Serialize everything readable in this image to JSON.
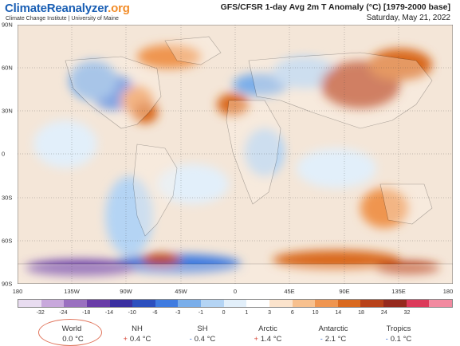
{
  "brand": {
    "name_part1": "ClimateReanalyzer",
    "name_part2": ".org",
    "subtitle": "Climate Change Institute | University of Maine"
  },
  "header": {
    "title": "GFS/CFSR 1-day Avg 2m T Anomaly (°C) [1979-2000 base]",
    "date": "Saturday, May 21, 2022"
  },
  "axes": {
    "lat_labels": [
      "90N",
      "60N",
      "30N",
      "0",
      "30S",
      "60S",
      "90S"
    ],
    "lon_labels": [
      "180",
      "135W",
      "90W",
      "45W",
      "0",
      "45E",
      "90E",
      "135E",
      "180"
    ]
  },
  "colorbar": {
    "labels": [
      "-32",
      "-24",
      "-18",
      "-14",
      "-10",
      "-6",
      "-3",
      "-1",
      "0",
      "1",
      "3",
      "6",
      "10",
      "14",
      "18",
      "24",
      "32"
    ],
    "colors": [
      "#e8dcf0",
      "#c8a8dc",
      "#9a70c0",
      "#6a3ca8",
      "#3a2fa0",
      "#2c4fbe",
      "#3f7be0",
      "#7aaeea",
      "#b4d4f4",
      "#e2effa",
      "#ffffff",
      "#fbe3cc",
      "#f7c08e",
      "#ef9550",
      "#d9691f",
      "#b8421a",
      "#962a1e",
      "#dc3a5a",
      "#f28aa0"
    ]
  },
  "stats": [
    {
      "name": "World",
      "sign": "",
      "value": "0.0 °C"
    },
    {
      "name": "NH",
      "sign": "+",
      "value": "0.4 °C"
    },
    {
      "name": "SH",
      "sign": "-",
      "value": "0.4 °C"
    },
    {
      "name": "Arctic",
      "sign": "+",
      "value": "1.4 °C"
    },
    {
      "name": "Antarctic",
      "sign": "-",
      "value": "2.1 °C"
    },
    {
      "name": "Tropics",
      "sign": "-",
      "value": "0.1 °C"
    }
  ]
}
